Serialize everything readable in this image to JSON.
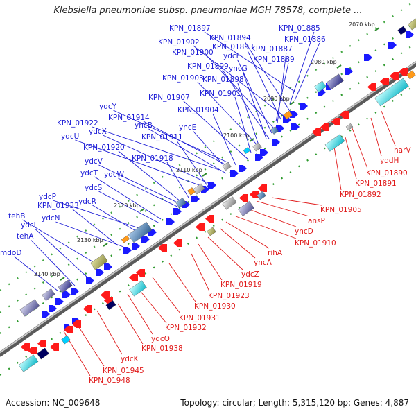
{
  "title": "Klebsiella pneumoniae subsp. pneumoniae MGH 78578, complete ...",
  "footer": {
    "accession": "Accession: NC_009648",
    "summary": "Topology: circular; Length: 5,315,120 bp; Genes: 4,887"
  },
  "colors": {
    "forward_label": "#1a1ad6",
    "reverse_label": "#e01a1a",
    "backbone": "#777777",
    "tick_mark": "#2e8b2e"
  },
  "ticks": [
    {
      "label": "2070 kbp"
    },
    {
      "label": "2080 kbp"
    },
    {
      "label": "2090 kbp"
    },
    {
      "label": "2100 kbp"
    },
    {
      "label": "2110 kbp"
    },
    {
      "label": "2120 kbp"
    },
    {
      "label": "2130 kbp"
    },
    {
      "label": "2140 kbp"
    }
  ],
  "forward_genes": [
    {
      "label": "KPN_01885"
    },
    {
      "label": "KPN_01897"
    },
    {
      "label": "KPN_01886"
    },
    {
      "label": "KPN_01894"
    },
    {
      "label": "KPN_01902"
    },
    {
      "label": "KPN_01893"
    },
    {
      "label": "KPN_01887"
    },
    {
      "label": "KPN_01900"
    },
    {
      "label": "ydcE"
    },
    {
      "label": "KPN_01889"
    },
    {
      "label": "KPN_01899"
    },
    {
      "label": "yncG"
    },
    {
      "label": "KPN_01903"
    },
    {
      "label": "KPN_01898"
    },
    {
      "label": "KPN_01901"
    },
    {
      "label": "KPN_01907"
    },
    {
      "label": "KPN_01904"
    },
    {
      "label": "ydcY"
    },
    {
      "label": "KPN_01914"
    },
    {
      "label": "KPN_01922"
    },
    {
      "label": "yncB"
    },
    {
      "label": "yncE"
    },
    {
      "label": "ydcX"
    },
    {
      "label": "ydcU"
    },
    {
      "label": "KPN_01911"
    },
    {
      "label": "KPN_01920"
    },
    {
      "label": "ydcV"
    },
    {
      "label": "KPN_01918"
    },
    {
      "label": "ydcT"
    },
    {
      "label": "ydcW"
    },
    {
      "label": "ydcS"
    },
    {
      "label": "ydcP"
    },
    {
      "label": "ydcR"
    },
    {
      "label": "KPN_01933"
    },
    {
      "label": "tehB"
    },
    {
      "label": "ydcN"
    },
    {
      "label": "ydcL"
    },
    {
      "label": "tehA"
    },
    {
      "label": "mdoD"
    }
  ],
  "reverse_genes": [
    {
      "label": "narV"
    },
    {
      "label": "yddH"
    },
    {
      "label": "KPN_01890"
    },
    {
      "label": "KPN_01891"
    },
    {
      "label": "KPN_01892"
    },
    {
      "label": "KPN_01905"
    },
    {
      "label": "ansP"
    },
    {
      "label": "yncD"
    },
    {
      "label": "KPN_01910"
    },
    {
      "label": "rihA"
    },
    {
      "label": "yncA"
    },
    {
      "label": "ydcZ"
    },
    {
      "label": "KPN_01919"
    },
    {
      "label": "KPN_01923"
    },
    {
      "label": "KPN_01930"
    },
    {
      "label": "KPN_01931"
    },
    {
      "label": "KPN_01932"
    },
    {
      "label": "ydcO"
    },
    {
      "label": "KPN_01938"
    },
    {
      "label": "ydcK"
    },
    {
      "label": "KPN_01945"
    },
    {
      "label": "KPN_01948"
    }
  ]
}
